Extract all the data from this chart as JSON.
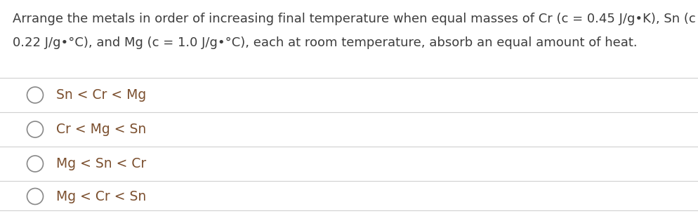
{
  "question_line1": "Arrange the metals in order of increasing final temperature when equal masses of Cr (c = 0.45 J/g•K), Sn (c =",
  "question_line2": "0.22 J/g•°C), and Mg (c = 1.0 J/g•°C), each at room temperature, absorb an equal amount of heat.",
  "options": [
    "Sn < Cr < Mg",
    "Cr < Mg < Sn",
    "Mg < Sn < Cr",
    "Mg < Cr < Sn"
  ],
  "background_color": "#ffffff",
  "text_color_question": "#3d3d3d",
  "text_color_option": "#7b4f2e",
  "line_color": "#d0d0d0",
  "font_size_question": 13.0,
  "font_size_option": 13.5,
  "circle_color": "#888888"
}
